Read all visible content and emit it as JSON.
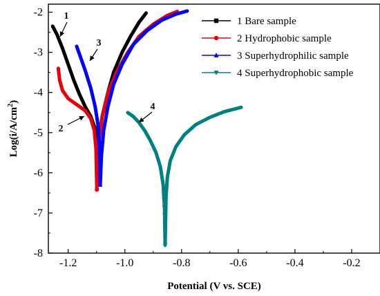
{
  "chart_data": {
    "type": "line",
    "title": "",
    "xlabel": "Potential (V vs. SCE)",
    "ylabel_main": "Log(i/A/cm",
    "ylabel_sup": "2",
    "ylabel_tail": ")",
    "xlim": [
      -1.27,
      -0.1
    ],
    "ylim": [
      -8,
      -1.8
    ],
    "x_ticks": [
      -1.2,
      -1.0,
      -0.8,
      -0.6,
      -0.4,
      -0.2
    ],
    "x_tick_labels": [
      "-1.2",
      "-1.0",
      "-0.8",
      "-0.6",
      "-0.4",
      "-0.2"
    ],
    "y_ticks": [
      -2,
      -3,
      -4,
      -5,
      -6,
      -7,
      -8
    ],
    "y_tick_labels": [
      "-2",
      "-3",
      "-4",
      "-5",
      "-6",
      "-7",
      "-8"
    ],
    "legend_position": "top-right",
    "series": [
      {
        "name": "1 Bare sample",
        "label": "1",
        "color": "#000000",
        "marker": "square",
        "cathodic": [
          [
            -1.255,
            -2.35
          ],
          [
            -1.24,
            -2.55
          ],
          [
            -1.22,
            -2.9
          ],
          [
            -1.2,
            -3.3
          ],
          [
            -1.18,
            -3.7
          ],
          [
            -1.16,
            -4.05
          ],
          [
            -1.14,
            -4.35
          ],
          [
            -1.12,
            -4.6
          ],
          [
            -1.105,
            -4.9
          ],
          [
            -1.098,
            -5.2
          ],
          [
            -1.095,
            -5.6
          ]
        ],
        "anodic": [
          [
            -1.095,
            -5.6
          ],
          [
            -1.09,
            -5.1
          ],
          [
            -1.08,
            -4.6
          ],
          [
            -1.06,
            -4.0
          ],
          [
            -1.04,
            -3.5
          ],
          [
            -1.01,
            -3.0
          ],
          [
            -0.98,
            -2.6
          ],
          [
            -0.95,
            -2.25
          ],
          [
            -0.925,
            -2.02
          ]
        ]
      },
      {
        "name": "2 Hydrophobic sample",
        "label": "2",
        "color": "#e8000b",
        "marker": "circle",
        "cathodic": [
          [
            -1.235,
            -3.4
          ],
          [
            -1.23,
            -3.7
          ],
          [
            -1.22,
            -3.95
          ],
          [
            -1.2,
            -4.15
          ],
          [
            -1.17,
            -4.3
          ],
          [
            -1.14,
            -4.45
          ],
          [
            -1.12,
            -4.65
          ],
          [
            -1.108,
            -4.95
          ],
          [
            -1.102,
            -5.4
          ],
          [
            -1.1,
            -6.0
          ],
          [
            -1.099,
            -6.42
          ]
        ],
        "anodic": [
          [
            -1.099,
            -6.42
          ],
          [
            -1.095,
            -5.7
          ],
          [
            -1.09,
            -5.1
          ],
          [
            -1.08,
            -4.6
          ],
          [
            -1.06,
            -4.0
          ],
          [
            -1.03,
            -3.5
          ],
          [
            -0.99,
            -3.0
          ],
          [
            -0.95,
            -2.6
          ],
          [
            -0.9,
            -2.3
          ],
          [
            -0.85,
            -2.08
          ],
          [
            -0.815,
            -1.98
          ]
        ]
      },
      {
        "name": "3 Superhydrophilic sample",
        "label": "3",
        "color": "#0000ff",
        "marker": "triangle",
        "cathodic": [
          [
            -1.17,
            -2.85
          ],
          [
            -1.16,
            -3.05
          ],
          [
            -1.14,
            -3.45
          ],
          [
            -1.12,
            -3.9
          ],
          [
            -1.105,
            -4.35
          ],
          [
            -1.095,
            -4.8
          ],
          [
            -1.09,
            -5.3
          ],
          [
            -1.088,
            -5.8
          ],
          [
            -1.087,
            -6.3
          ]
        ],
        "anodic": [
          [
            -1.087,
            -6.3
          ],
          [
            -1.083,
            -5.6
          ],
          [
            -1.075,
            -4.95
          ],
          [
            -1.06,
            -4.35
          ],
          [
            -1.04,
            -3.8
          ],
          [
            -1.01,
            -3.3
          ],
          [
            -0.97,
            -2.8
          ],
          [
            -0.92,
            -2.45
          ],
          [
            -0.87,
            -2.2
          ],
          [
            -0.82,
            -2.05
          ],
          [
            -0.78,
            -1.97
          ]
        ]
      },
      {
        "name": "4 Superhydrophobic sample",
        "label": "4",
        "color": "#008080",
        "marker": "triangle-down",
        "cathodic": [
          [
            -0.99,
            -4.5
          ],
          [
            -0.97,
            -4.6
          ],
          [
            -0.95,
            -4.75
          ],
          [
            -0.93,
            -4.95
          ],
          [
            -0.91,
            -5.2
          ],
          [
            -0.89,
            -5.5
          ],
          [
            -0.875,
            -5.85
          ],
          [
            -0.865,
            -6.3
          ],
          [
            -0.86,
            -6.9
          ],
          [
            -0.858,
            -7.8
          ]
        ],
        "anodic": [
          [
            -0.858,
            -7.8
          ],
          [
            -0.855,
            -6.6
          ],
          [
            -0.85,
            -6.1
          ],
          [
            -0.84,
            -5.7
          ],
          [
            -0.82,
            -5.35
          ],
          [
            -0.79,
            -5.05
          ],
          [
            -0.75,
            -4.8
          ],
          [
            -0.7,
            -4.62
          ],
          [
            -0.65,
            -4.48
          ],
          [
            -0.59,
            -4.37
          ]
        ]
      }
    ]
  }
}
